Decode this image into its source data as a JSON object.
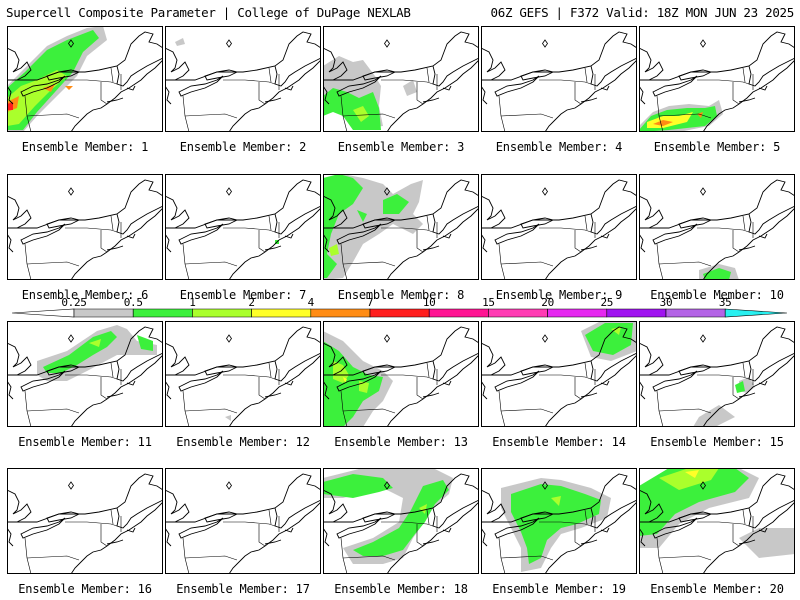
{
  "header": {
    "left": "Supercell Composite Parameter | College of DuPage NEXLAB",
    "right": "06Z GEFS | F372 Valid: 18Z MON JUN 23 2025"
  },
  "members": [
    {
      "caption": "Ensemble Member: 1"
    },
    {
      "caption": "Ensemble Member: 2"
    },
    {
      "caption": "Ensemble Member: 3"
    },
    {
      "caption": "Ensemble Member: 4"
    },
    {
      "caption": "Ensemble Member: 5"
    },
    {
      "caption": "Ensemble Member: 6"
    },
    {
      "caption": "Ensemble Member: 7"
    },
    {
      "caption": "Ensemble Member: 8"
    },
    {
      "caption": "Ensemble Member: 9"
    },
    {
      "caption": "Ensemble Member: 10"
    },
    {
      "caption": "Ensemble Member: 11"
    },
    {
      "caption": "Ensemble Member: 12"
    },
    {
      "caption": "Ensemble Member: 13"
    },
    {
      "caption": "Ensemble Member: 14"
    },
    {
      "caption": "Ensemble Member: 15"
    },
    {
      "caption": "Ensemble Member: 16"
    },
    {
      "caption": "Ensemble Member: 17"
    },
    {
      "caption": "Ensemble Member: 18"
    },
    {
      "caption": "Ensemble Member: 19"
    },
    {
      "caption": "Ensemble Member: 20"
    }
  ],
  "colorbar": {
    "labels": [
      "0.25",
      "0.5",
      "1",
      "2",
      "4",
      "7",
      "10",
      "15",
      "20",
      "25",
      "30",
      "35"
    ],
    "colors": [
      "#c8c8c8",
      "#3cf03c",
      "#aaff2c",
      "#ffff28",
      "#ff8c14",
      "#ff1e1e",
      "#ff1493",
      "#ff3cb4",
      "#e628f0",
      "#a014f0",
      "#b464e6"
    ],
    "end_color_left": "#ffffff",
    "end_color_right": "#28f0f0"
  },
  "scp_colors": {
    "gray": "#c8c8c8",
    "green": "#3cf03c",
    "yellowgreen": "#aaff2c",
    "yellow": "#ffff28",
    "orange": "#ff8c14",
    "red": "#ff1e1e"
  }
}
